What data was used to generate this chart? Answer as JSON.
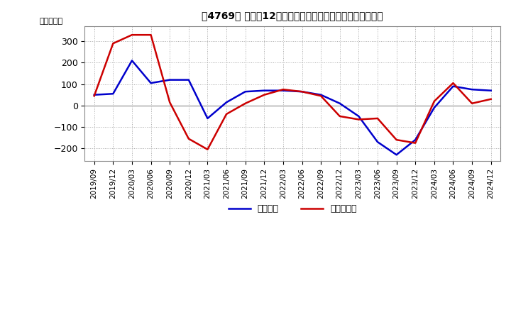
{
  "title": "［4769］ 利益だ12か月移動合計の対前年同期増減額の推移",
  "ylabel": "（百万円）",
  "background_color": "#ffffff",
  "grid_color": "#aaaaaa",
  "x_labels": [
    "2019/09",
    "2019/12",
    "2020/03",
    "2020/06",
    "2020/09",
    "2020/12",
    "2021/03",
    "2021/06",
    "2021/09",
    "2021/12",
    "2022/03",
    "2022/06",
    "2022/09",
    "2022/12",
    "2023/03",
    "2023/06",
    "2023/09",
    "2023/12",
    "2024/03",
    "2024/06",
    "2024/09",
    "2024/12"
  ],
  "keijo_rieki": [
    50,
    55,
    210,
    105,
    120,
    120,
    -60,
    15,
    65,
    70,
    70,
    65,
    50,
    10,
    -50,
    -170,
    -230,
    -160,
    -10,
    90,
    75,
    70
  ],
  "touki_jun_rieki": [
    45,
    290,
    330,
    330,
    15,
    -155,
    -205,
    -40,
    10,
    50,
    75,
    65,
    45,
    -50,
    -65,
    -60,
    -160,
    -175,
    20,
    105,
    10,
    30
  ],
  "keijo_color": "#0000cc",
  "touki_color": "#cc0000",
  "ylim_min": -260,
  "ylim_max": 370,
  "yticks": [
    -200,
    -100,
    0,
    100,
    200,
    300
  ],
  "legend_labels": [
    "経常利益",
    "当期純利益"
  ]
}
